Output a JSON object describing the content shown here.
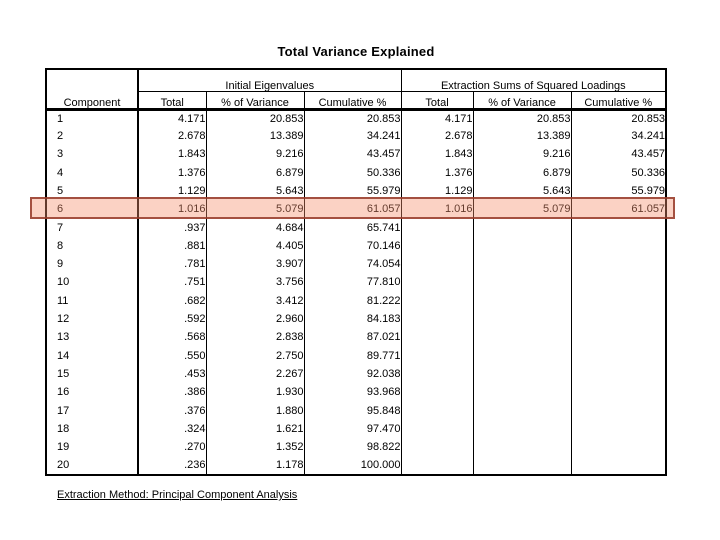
{
  "slide": {
    "title": "Total Variance Explained",
    "footer": "Extraction Method: Principal Component Analysis"
  },
  "colors": {
    "highlight_fill": "rgba(245,142,108,0.40)",
    "highlight_border": "rgba(148,58,41,0.85)",
    "table_line": "#000000",
    "background": "#ffffff"
  },
  "table": {
    "spanners": [
      "Initial Eigenvalues",
      "Extraction Sums of Squared Loadings"
    ],
    "columns": [
      "Component",
      "Total",
      "% of Variance",
      "Cumulative %",
      "Total",
      "% of Variance",
      "Cumulative %"
    ],
    "highlighted_component": "6",
    "rows": [
      [
        "1",
        "4.171",
        "20.853",
        "20.853",
        "4.171",
        "20.853",
        "20.853"
      ],
      [
        "2",
        "2.678",
        "13.389",
        "34.241",
        "2.678",
        "13.389",
        "34.241"
      ],
      [
        "3",
        "1.843",
        "9.216",
        "43.457",
        "1.843",
        "9.216",
        "43.457"
      ],
      [
        "4",
        "1.376",
        "6.879",
        "50.336",
        "1.376",
        "6.879",
        "50.336"
      ],
      [
        "5",
        "1.129",
        "5.643",
        "55.979",
        "1.129",
        "5.643",
        "55.979"
      ],
      [
        "6",
        "1.016",
        "5.079",
        "61.057",
        "1.016",
        "5.079",
        "61.057"
      ],
      [
        "7",
        ".937",
        "4.684",
        "65.741",
        "",
        "",
        ""
      ],
      [
        "8",
        ".881",
        "4.405",
        "70.146",
        "",
        "",
        ""
      ],
      [
        "9",
        ".781",
        "3.907",
        "74.054",
        "",
        "",
        ""
      ],
      [
        "10",
        ".751",
        "3.756",
        "77.810",
        "",
        "",
        ""
      ],
      [
        "11",
        ".682",
        "3.412",
        "81.222",
        "",
        "",
        ""
      ],
      [
        "12",
        ".592",
        "2.960",
        "84.183",
        "",
        "",
        ""
      ],
      [
        "13",
        ".568",
        "2.838",
        "87.021",
        "",
        "",
        ""
      ],
      [
        "14",
        ".550",
        "2.750",
        "89.771",
        "",
        "",
        ""
      ],
      [
        "15",
        ".453",
        "2.267",
        "92.038",
        "",
        "",
        ""
      ],
      [
        "16",
        ".386",
        "1.930",
        "93.968",
        "",
        "",
        ""
      ],
      [
        "17",
        ".376",
        "1.880",
        "95.848",
        "",
        "",
        ""
      ],
      [
        "18",
        ".324",
        "1.621",
        "97.470",
        "",
        "",
        ""
      ],
      [
        "19",
        ".270",
        "1.352",
        "98.822",
        "",
        "",
        ""
      ],
      [
        "20",
        ".236",
        "1.178",
        "100.000",
        "",
        "",
        ""
      ]
    ]
  },
  "chart_data": {
    "type": "table",
    "title": "Total Variance Explained",
    "column_groups": [
      {
        "label": "",
        "span": [
          "Component"
        ]
      },
      {
        "label": "Initial Eigenvalues",
        "span": [
          "Total",
          "% of Variance",
          "Cumulative %"
        ]
      },
      {
        "label": "Extraction Sums of Squared Loadings",
        "span": [
          "Total",
          "% of Variance",
          "Cumulative %"
        ]
      }
    ],
    "columns": [
      "Component",
      "Initial Total",
      "Initial % of Variance",
      "Initial Cumulative %",
      "Extraction Total",
      "Extraction % of Variance",
      "Extraction Cumulative %"
    ],
    "rows": [
      [
        1,
        4.171,
        20.853,
        20.853,
        4.171,
        20.853,
        20.853
      ],
      [
        2,
        2.678,
        13.389,
        34.241,
        2.678,
        13.389,
        34.241
      ],
      [
        3,
        1.843,
        9.216,
        43.457,
        1.843,
        9.216,
        43.457
      ],
      [
        4,
        1.376,
        6.879,
        50.336,
        1.376,
        6.879,
        50.336
      ],
      [
        5,
        1.129,
        5.643,
        55.979,
        1.129,
        5.643,
        55.979
      ],
      [
        6,
        1.016,
        5.079,
        61.057,
        1.016,
        5.079,
        61.057
      ],
      [
        7,
        0.937,
        4.684,
        65.741,
        null,
        null,
        null
      ],
      [
        8,
        0.881,
        4.405,
        70.146,
        null,
        null,
        null
      ],
      [
        9,
        0.781,
        3.907,
        74.054,
        null,
        null,
        null
      ],
      [
        10,
        0.751,
        3.756,
        77.81,
        null,
        null,
        null
      ],
      [
        11,
        0.682,
        3.412,
        81.222,
        null,
        null,
        null
      ],
      [
        12,
        0.592,
        2.96,
        84.183,
        null,
        null,
        null
      ],
      [
        13,
        0.568,
        2.838,
        87.021,
        null,
        null,
        null
      ],
      [
        14,
        0.55,
        2.75,
        89.771,
        null,
        null,
        null
      ],
      [
        15,
        0.453,
        2.267,
        92.038,
        null,
        null,
        null
      ],
      [
        16,
        0.386,
        1.93,
        93.968,
        null,
        null,
        null
      ],
      [
        17,
        0.376,
        1.88,
        95.848,
        null,
        null,
        null
      ],
      [
        18,
        0.324,
        1.621,
        97.47,
        null,
        null,
        null
      ],
      [
        19,
        0.27,
        1.352,
        98.822,
        null,
        null,
        null
      ],
      [
        20,
        0.236,
        1.178,
        100.0,
        null,
        null,
        null
      ]
    ],
    "highlighted_row": 6,
    "footnote": "Extraction Method: Principal Component Analysis"
  }
}
